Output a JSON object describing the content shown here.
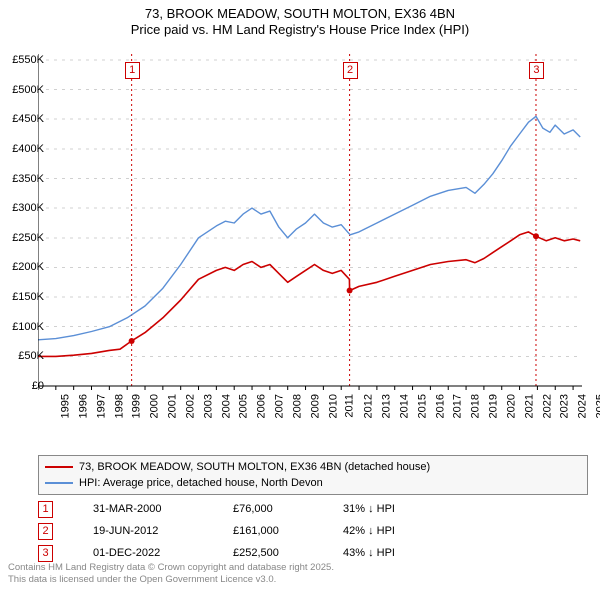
{
  "title": {
    "line1": "73, BROOK MEADOW, SOUTH MOLTON, EX36 4BN",
    "line2": "Price paid vs. HM Land Registry's House Price Index (HPI)"
  },
  "chart": {
    "type": "line",
    "background_color": "#ffffff",
    "grid_color": "#d0d0d0",
    "axis_color": "#000000",
    "x_years": [
      1995,
      1996,
      1997,
      1998,
      1999,
      2000,
      2001,
      2002,
      2003,
      2004,
      2005,
      2006,
      2007,
      2008,
      2009,
      2010,
      2011,
      2012,
      2013,
      2014,
      2015,
      2016,
      2017,
      2018,
      2019,
      2020,
      2021,
      2022,
      2023,
      2024,
      2025
    ],
    "ylim": [
      0,
      560000
    ],
    "y_ticks": [
      0,
      50000,
      100000,
      150000,
      200000,
      250000,
      300000,
      350000,
      400000,
      450000,
      500000,
      550000
    ],
    "y_tick_labels": [
      "£0",
      "£50K",
      "£100K",
      "£150K",
      "£200K",
      "£250K",
      "£300K",
      "£350K",
      "£400K",
      "£450K",
      "£500K",
      "£550K"
    ],
    "series": [
      {
        "name": "price_paid",
        "label": "73, BROOK MEADOW, SOUTH MOLTON, EX36 4BN (detached house)",
        "color": "#cc0000",
        "width": 1.6,
        "data": [
          [
            1995,
            50000
          ],
          [
            1996,
            50000
          ],
          [
            1997,
            52000
          ],
          [
            1998,
            55000
          ],
          [
            1999,
            60000
          ],
          [
            1999.6,
            62000
          ],
          [
            2000.25,
            76000
          ],
          [
            2001,
            90000
          ],
          [
            2002,
            115000
          ],
          [
            2003,
            145000
          ],
          [
            2004,
            180000
          ],
          [
            2005,
            195000
          ],
          [
            2005.5,
            200000
          ],
          [
            2006,
            195000
          ],
          [
            2006.5,
            205000
          ],
          [
            2007,
            210000
          ],
          [
            2007.5,
            200000
          ],
          [
            2008,
            205000
          ],
          [
            2008.5,
            190000
          ],
          [
            2009,
            175000
          ],
          [
            2009.5,
            185000
          ],
          [
            2010,
            195000
          ],
          [
            2010.5,
            205000
          ],
          [
            2011,
            195000
          ],
          [
            2011.5,
            190000
          ],
          [
            2012,
            195000
          ],
          [
            2012.46,
            180000
          ],
          [
            2012.47,
            161000
          ],
          [
            2013,
            168000
          ],
          [
            2014,
            175000
          ],
          [
            2015,
            185000
          ],
          [
            2016,
            195000
          ],
          [
            2017,
            205000
          ],
          [
            2018,
            210000
          ],
          [
            2019,
            213000
          ],
          [
            2019.5,
            208000
          ],
          [
            2020,
            215000
          ],
          [
            2020.5,
            225000
          ],
          [
            2021,
            235000
          ],
          [
            2021.5,
            245000
          ],
          [
            2022,
            255000
          ],
          [
            2022.5,
            260000
          ],
          [
            2022.92,
            252500
          ],
          [
            2023.5,
            245000
          ],
          [
            2024,
            250000
          ],
          [
            2024.5,
            245000
          ],
          [
            2025,
            248000
          ],
          [
            2025.4,
            245000
          ]
        ]
      },
      {
        "name": "hpi",
        "label": "HPI: Average price, detached house, North Devon",
        "color": "#5b8fd6",
        "width": 1.4,
        "data": [
          [
            1995,
            78000
          ],
          [
            1996,
            80000
          ],
          [
            1997,
            85000
          ],
          [
            1998,
            92000
          ],
          [
            1999,
            100000
          ],
          [
            2000,
            115000
          ],
          [
            2001,
            135000
          ],
          [
            2002,
            165000
          ],
          [
            2003,
            205000
          ],
          [
            2004,
            250000
          ],
          [
            2005,
            270000
          ],
          [
            2005.5,
            278000
          ],
          [
            2006,
            275000
          ],
          [
            2006.5,
            290000
          ],
          [
            2007,
            300000
          ],
          [
            2007.5,
            290000
          ],
          [
            2008,
            295000
          ],
          [
            2008.5,
            268000
          ],
          [
            2009,
            250000
          ],
          [
            2009.5,
            265000
          ],
          [
            2010,
            275000
          ],
          [
            2010.5,
            290000
          ],
          [
            2011,
            275000
          ],
          [
            2011.5,
            268000
          ],
          [
            2012,
            272000
          ],
          [
            2012.5,
            255000
          ],
          [
            2013,
            260000
          ],
          [
            2014,
            275000
          ],
          [
            2015,
            290000
          ],
          [
            2016,
            305000
          ],
          [
            2017,
            320000
          ],
          [
            2018,
            330000
          ],
          [
            2019,
            335000
          ],
          [
            2019.5,
            325000
          ],
          [
            2020,
            340000
          ],
          [
            2020.5,
            358000
          ],
          [
            2021,
            380000
          ],
          [
            2021.5,
            405000
          ],
          [
            2022,
            425000
          ],
          [
            2022.5,
            445000
          ],
          [
            2022.92,
            455000
          ],
          [
            2023.3,
            435000
          ],
          [
            2023.7,
            428000
          ],
          [
            2024,
            440000
          ],
          [
            2024.5,
            425000
          ],
          [
            2025,
            432000
          ],
          [
            2025.4,
            420000
          ]
        ]
      }
    ],
    "sale_markers": [
      {
        "n": "1",
        "x": 2000.25,
        "y": 76000
      },
      {
        "n": "2",
        "x": 2012.47,
        "y": 161000
      },
      {
        "n": "3",
        "x": 2022.92,
        "y": 252500
      }
    ],
    "marker_line_color": "#cc0000",
    "marker_box_border": "#cc0000",
    "marker_box_bg": "#ffffff"
  },
  "legend": {
    "rows": [
      {
        "color": "#cc0000",
        "label": "73, BROOK MEADOW, SOUTH MOLTON, EX36 4BN (detached house)"
      },
      {
        "color": "#5b8fd6",
        "label": "HPI: Average price, detached house, North Devon"
      }
    ]
  },
  "sales_table": {
    "rows": [
      {
        "n": "1",
        "date": "31-MAR-2000",
        "price": "£76,000",
        "hpi": "31% ↓ HPI"
      },
      {
        "n": "2",
        "date": "19-JUN-2012",
        "price": "£161,000",
        "hpi": "42% ↓ HPI"
      },
      {
        "n": "3",
        "date": "01-DEC-2022",
        "price": "£252,500",
        "hpi": "43% ↓ HPI"
      }
    ]
  },
  "footer": {
    "line1": "Contains HM Land Registry data © Crown copyright and database right 2025.",
    "line2": "This data is licensed under the Open Government Licence v3.0."
  }
}
